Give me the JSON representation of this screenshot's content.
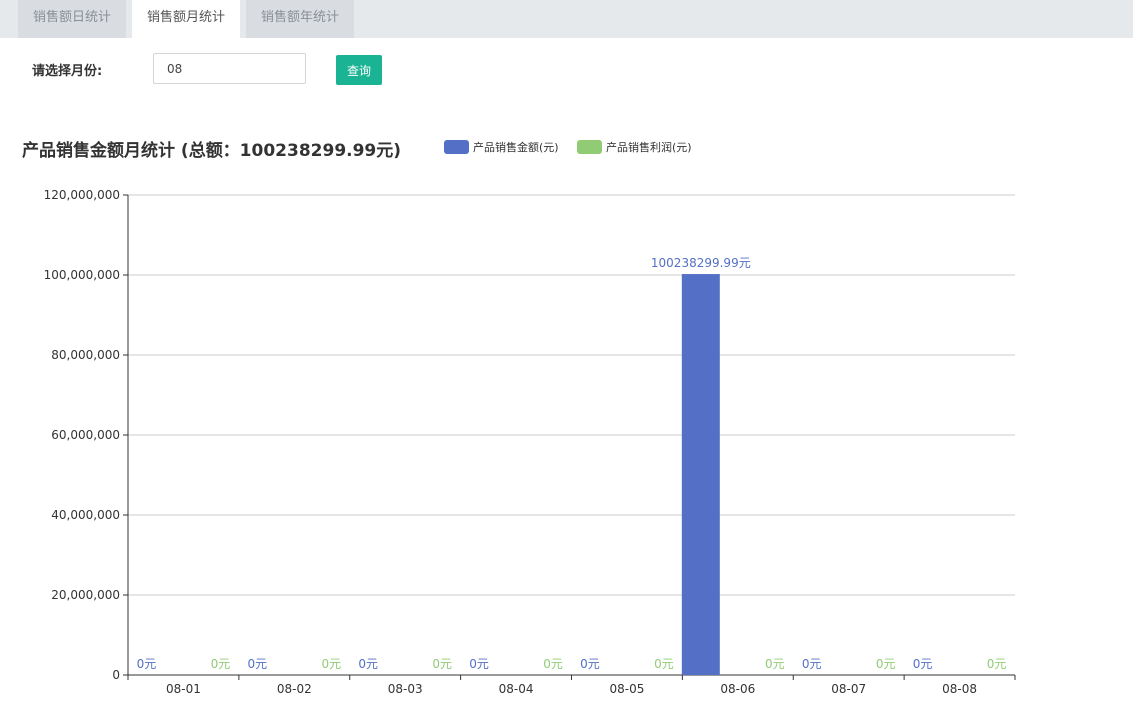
{
  "tabs": [
    {
      "label": "销售额日统计",
      "active": false
    },
    {
      "label": "销售额月统计",
      "active": true
    },
    {
      "label": "销售额年统计",
      "active": false
    }
  ],
  "filter": {
    "label": "请选择月份:",
    "month_value": "08",
    "query_label": "查询"
  },
  "chart_data": {
    "type": "bar",
    "title": "产品销售金额月统计 (总额：100238299.99元)",
    "categories": [
      "08-01",
      "08-02",
      "08-03",
      "08-04",
      "08-05",
      "08-06",
      "08-07",
      "08-08"
    ],
    "series": [
      {
        "name": "产品销售金额(元)",
        "color": "#5470c6",
        "values": [
          0,
          0,
          0,
          0,
          0,
          100238299.99,
          0,
          0
        ],
        "labels": [
          "0元",
          "0元",
          "0元",
          "0元",
          "0元",
          "100238299.99元",
          "0元",
          "0元"
        ]
      },
      {
        "name": "产品销售利润(元)",
        "color": "#91cc75",
        "values": [
          0,
          0,
          0,
          0,
          0,
          0,
          0,
          0
        ],
        "labels": [
          "0元",
          "0元",
          "0元",
          "0元",
          "0元",
          "0元",
          "0元",
          "0元"
        ]
      }
    ],
    "yticks": [
      "0",
      "20,000,000",
      "40,000,000",
      "60,000,000",
      "80,000,000",
      "100,000,000",
      "120,000,000"
    ],
    "ylim": [
      0,
      120000000
    ],
    "grid": true,
    "legend_position": "top-right-of-title"
  }
}
